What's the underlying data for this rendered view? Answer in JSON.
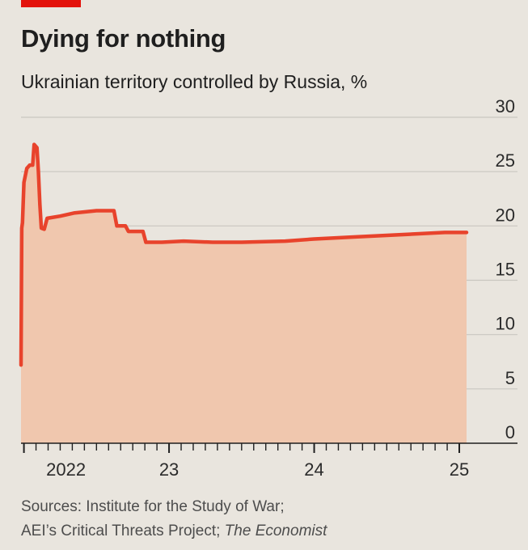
{
  "brand": {
    "accent": "#e3120b"
  },
  "header": {
    "title": "Dying for nothing",
    "subtitle": "Ukrainian territory controlled by Russia, %"
  },
  "chart_data": {
    "type": "area",
    "title": "Dying for nothing",
    "subtitle": "Ukrainian territory controlled by Russia, %",
    "xlabel": "",
    "ylabel": "%",
    "ylim": [
      0,
      30
    ],
    "yticks": [
      0,
      5,
      10,
      15,
      20,
      25,
      30
    ],
    "xticks": [
      {
        "value": 2022.0,
        "label": "2022"
      },
      {
        "value": 2023.0,
        "label": "23"
      },
      {
        "value": 2024.0,
        "label": "24"
      },
      {
        "value": 2025.0,
        "label": "25"
      }
    ],
    "grid": true,
    "colors": {
      "line": "#e8432c",
      "fill": "#f0c7ae",
      "grid": "#c9c6c0",
      "background": "#e9e5de"
    },
    "series": [
      {
        "values": [
          [
            2021.98,
            7.2
          ],
          [
            2021.985,
            19.8
          ],
          [
            2021.99,
            20.3
          ],
          [
            2022.0,
            24.0
          ],
          [
            2022.02,
            25.3
          ],
          [
            2022.04,
            25.6
          ],
          [
            2022.06,
            25.6
          ],
          [
            2022.07,
            27.5
          ],
          [
            2022.09,
            27.2
          ],
          [
            2022.1,
            25.0
          ],
          [
            2022.11,
            22.0
          ],
          [
            2022.12,
            19.8
          ],
          [
            2022.14,
            19.7
          ],
          [
            2022.16,
            20.7
          ],
          [
            2022.25,
            20.9
          ],
          [
            2022.35,
            21.2
          ],
          [
            2022.5,
            21.4
          ],
          [
            2022.62,
            21.4
          ],
          [
            2022.64,
            20.0
          ],
          [
            2022.7,
            20.0
          ],
          [
            2022.72,
            19.5
          ],
          [
            2022.82,
            19.5
          ],
          [
            2022.84,
            18.5
          ],
          [
            2022.95,
            18.5
          ],
          [
            2023.1,
            18.6
          ],
          [
            2023.3,
            18.5
          ],
          [
            2023.5,
            18.5
          ],
          [
            2023.8,
            18.6
          ],
          [
            2024.0,
            18.8
          ],
          [
            2024.3,
            19.0
          ],
          [
            2024.6,
            19.2
          ],
          [
            2024.9,
            19.4
          ],
          [
            2025.05,
            19.4
          ]
        ]
      }
    ]
  },
  "source": {
    "line1": "Sources: Institute for the Study of War;",
    "line2_prefix": "AEI’s Critical Threats Project; ",
    "line2_italic": "The Economist"
  }
}
